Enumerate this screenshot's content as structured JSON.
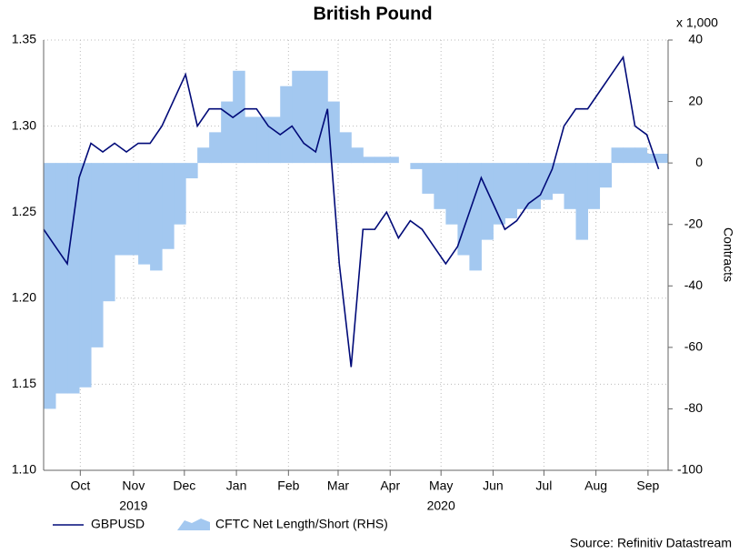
{
  "chart_data": {
    "type": "line",
    "title": "British Pound",
    "y2_unit_label": "x 1,000",
    "y2_label": "Contracts",
    "source": "Source: Refinitiv Datastream",
    "x": [
      0,
      1,
      2,
      3,
      4,
      5,
      6,
      7,
      8,
      9,
      10,
      11,
      12,
      13,
      14,
      15,
      16,
      17,
      18,
      19,
      20,
      21,
      22,
      23,
      24,
      25,
      26,
      27,
      28,
      29,
      30,
      31,
      32,
      33,
      34,
      35,
      36,
      37,
      38,
      39,
      40,
      41,
      42,
      43,
      44,
      45,
      46,
      47,
      48,
      49,
      50,
      51,
      52
    ],
    "xlim": [
      0,
      52.8
    ],
    "xticks": [
      {
        "value": 3.1,
        "label": "Oct"
      },
      {
        "value": 7.6,
        "label": "Nov"
      },
      {
        "value": 11.9,
        "label": "Dec"
      },
      {
        "value": 16.3,
        "label": "Jan"
      },
      {
        "value": 20.7,
        "label": "Feb"
      },
      {
        "value": 24.9,
        "label": "Mar"
      },
      {
        "value": 29.3,
        "label": "Apr"
      },
      {
        "value": 33.6,
        "label": "May"
      },
      {
        "value": 38.0,
        "label": "Jun"
      },
      {
        "value": 42.3,
        "label": "Jul"
      },
      {
        "value": 46.7,
        "label": "Aug"
      },
      {
        "value": 51.1,
        "label": "Sep"
      }
    ],
    "x_group_labels": [
      {
        "value": 7.6,
        "label": "2019"
      },
      {
        "value": 33.6,
        "label": "2020"
      }
    ],
    "ylim": [
      1.1,
      1.35
    ],
    "yticks": [
      {
        "value": 1.1,
        "label": "1.10"
      },
      1.15,
      {
        "value": 1.2,
        "label": "1.20"
      },
      1.25,
      {
        "value": 1.3,
        "label": "1.30"
      },
      1.35
    ],
    "y2lim": [
      -100,
      40
    ],
    "y2ticks": [
      -100,
      -80,
      -60,
      -40,
      -20,
      0,
      20,
      40
    ],
    "grid": true,
    "legend": "bottom",
    "series": [
      {
        "name": "GBPUSD",
        "color": "#000a78",
        "kind": "line",
        "values": [
          1.24,
          1.23,
          1.22,
          1.27,
          1.29,
          1.285,
          1.29,
          1.285,
          1.29,
          1.29,
          1.3,
          1.315,
          1.33,
          1.3,
          1.31,
          1.31,
          1.305,
          1.31,
          1.31,
          1.3,
          1.295,
          1.3,
          1.29,
          1.285,
          1.31,
          1.22,
          1.16,
          1.24,
          1.24,
          1.25,
          1.235,
          1.245,
          1.24,
          1.23,
          1.22,
          1.23,
          1.25,
          1.27,
          1.255,
          1.24,
          1.245,
          1.255,
          1.26,
          1.275,
          1.3,
          1.31,
          1.31,
          1.32,
          1.33,
          1.34,
          1.3,
          1.295,
          1.275
        ]
      },
      {
        "name": "CFTC Net Length/Short (RHS)",
        "color": "#a3c8f0",
        "kind": "step-area",
        "axis": "y2",
        "values": [
          -80,
          -75,
          -75,
          -73,
          -60,
          -45,
          -30,
          -30,
          -33,
          -35,
          -28,
          -20,
          -5,
          5,
          10,
          20,
          30,
          15,
          15,
          15,
          25,
          30,
          30,
          30,
          20,
          10,
          5,
          2,
          2,
          2,
          0,
          -2,
          -10,
          -15,
          -20,
          -30,
          -35,
          -25,
          -20,
          -18,
          -15,
          -15,
          -12,
          -10,
          -15,
          -25,
          -15,
          -8,
          5,
          5,
          5,
          3,
          3
        ]
      }
    ]
  }
}
